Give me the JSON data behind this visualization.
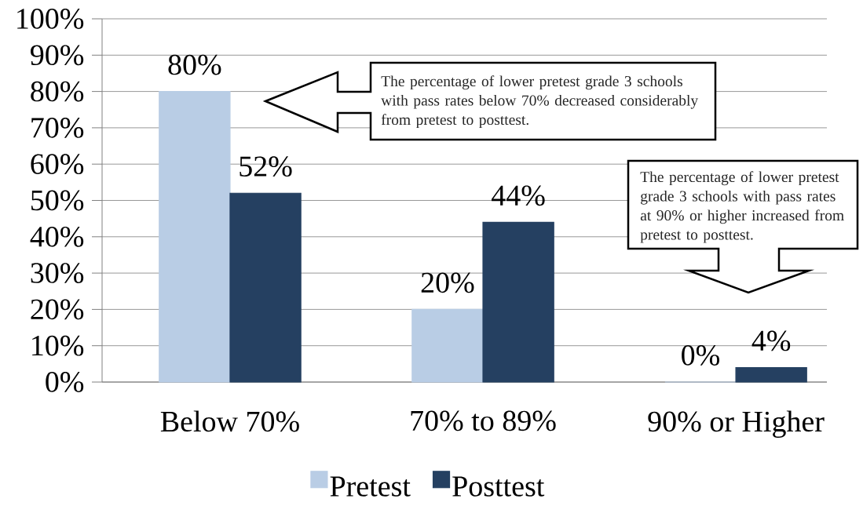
{
  "chart_data": {
    "type": "bar",
    "categories": [
      "Below 70%",
      "70% to 89%",
      "90% or Higher"
    ],
    "series": [
      {
        "name": "Pretest",
        "color": "#b9cde5",
        "values": [
          80,
          20,
          0
        ],
        "value_labels": [
          "80%",
          "20%",
          "0%"
        ]
      },
      {
        "name": "Posttest",
        "color": "#254061",
        "values": [
          52,
          44,
          4
        ],
        "value_labels": [
          "52%",
          "44%",
          "4%"
        ]
      }
    ],
    "ylim": [
      0,
      100
    ],
    "yticks": [
      {
        "value": 0,
        "label": "0%"
      },
      {
        "value": 10,
        "label": "10%"
      },
      {
        "value": 20,
        "label": "20%"
      },
      {
        "value": 30,
        "label": "30%"
      },
      {
        "value": 40,
        "label": "40%"
      },
      {
        "value": 50,
        "label": "50%"
      },
      {
        "value": 60,
        "label": "60%"
      },
      {
        "value": 70,
        "label": "70%"
      },
      {
        "value": 80,
        "label": "80%"
      },
      {
        "value": 90,
        "label": "90%"
      },
      {
        "value": 100,
        "label": "100%"
      }
    ],
    "grid": "y",
    "legend": "bottom",
    "annotations": [
      "The percentage of lower pretest grade 3 schools with pass rates below 70% decreased considerably from pretest to posttest.",
      "The percentage of lower pretest grade 3 schools with pass rates at 90% or higher increased from pretest to posttest."
    ]
  }
}
